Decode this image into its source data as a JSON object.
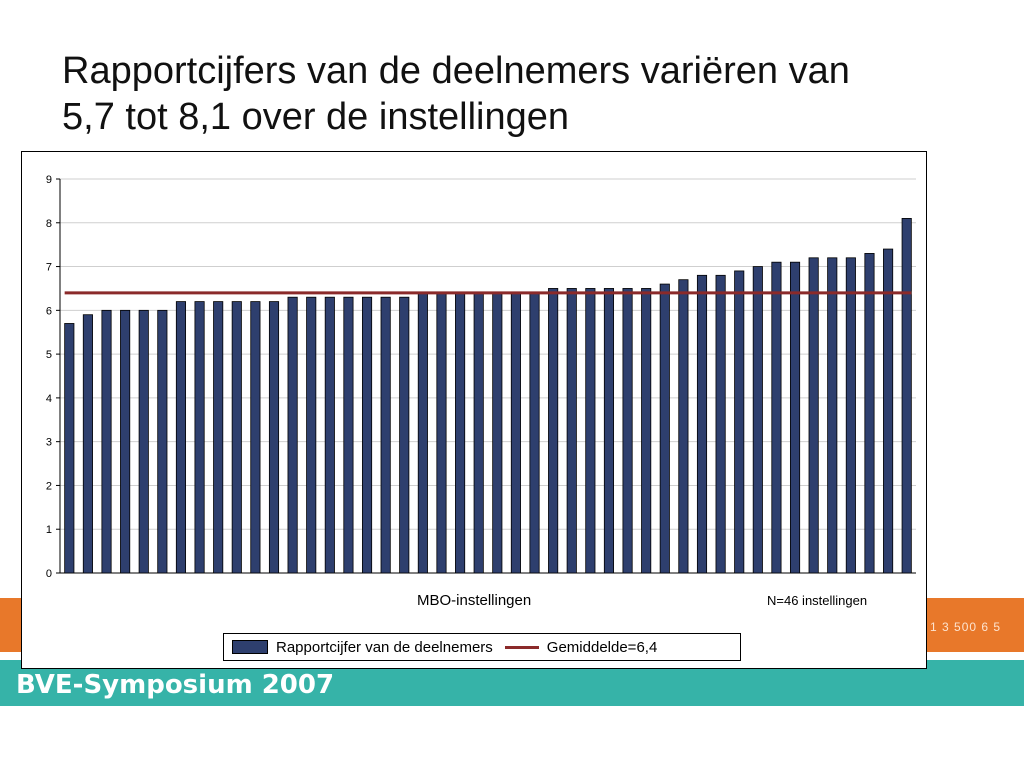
{
  "slide": {
    "title_line1": "Rapportcijfers van de deelnemers variëren van",
    "title_line2": "5,7 tot 8,1 over de instellingen",
    "band_code": "1 3 500 6 5",
    "band_event": "BVE-Symposium 2007"
  },
  "colors": {
    "bar": "#2e3f6e",
    "average_line": "#8b2a2a",
    "band_orange": "#e8782a",
    "band_teal": "#36b3a8"
  },
  "chart_data": {
    "type": "bar",
    "xlabel": "MBO-instellingen",
    "ylabel": "",
    "ylim": [
      0,
      9
    ],
    "yticks": [
      0,
      1,
      2,
      3,
      4,
      5,
      6,
      7,
      8,
      9
    ],
    "grid": true,
    "legend_position": "bottom",
    "note": "N=46 instellingen",
    "series": [
      {
        "name": "Rapportcijfer van de deelnemers",
        "values": [
          5.7,
          5.9,
          6.0,
          6.0,
          6.0,
          6.0,
          6.2,
          6.2,
          6.2,
          6.2,
          6.2,
          6.2,
          6.3,
          6.3,
          6.3,
          6.3,
          6.3,
          6.3,
          6.3,
          6.4,
          6.4,
          6.4,
          6.4,
          6.4,
          6.4,
          6.4,
          6.5,
          6.5,
          6.5,
          6.5,
          6.5,
          6.5,
          6.6,
          6.7,
          6.8,
          6.8,
          6.9,
          7.0,
          7.1,
          7.1,
          7.2,
          7.2,
          7.2,
          7.3,
          7.4,
          8.1
        ]
      }
    ],
    "average": {
      "name": "Gemiddelde=6,4",
      "value": 6.4
    }
  }
}
